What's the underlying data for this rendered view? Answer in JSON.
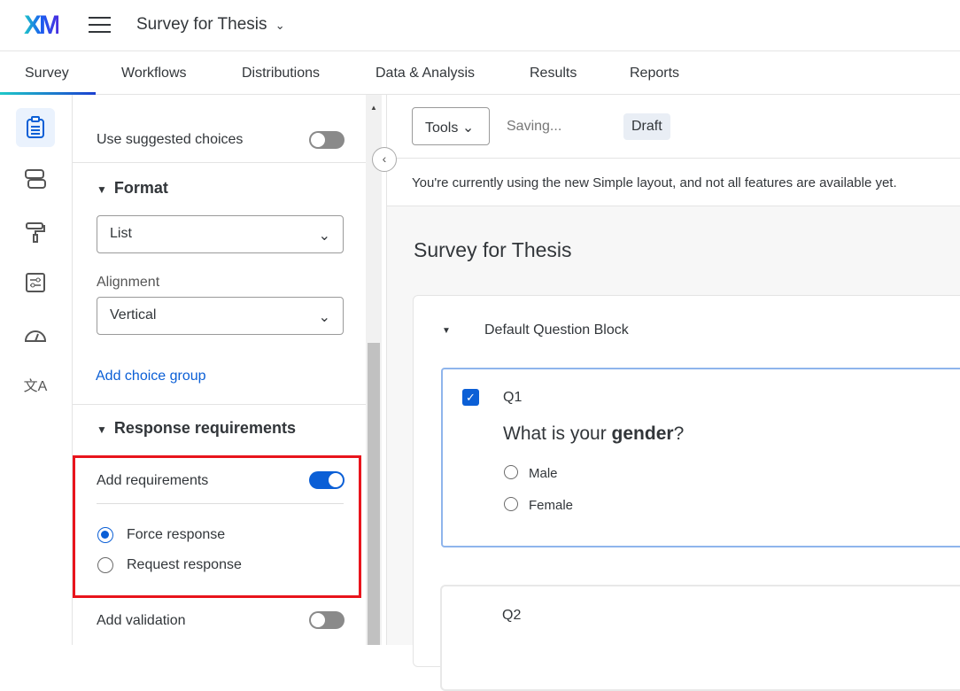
{
  "header": {
    "logo": "XM",
    "survey_title": "Survey for Thesis"
  },
  "tabs": [
    {
      "label": "Survey",
      "active": true
    },
    {
      "label": "Workflows"
    },
    {
      "label": "Distributions"
    },
    {
      "label": "Data & Analysis"
    },
    {
      "label": "Results"
    },
    {
      "label": "Reports"
    }
  ],
  "rail": [
    "survey-icon",
    "blocks-icon",
    "look-and-feel-icon",
    "survey-options-icon",
    "survey-checker-icon",
    "translate-icon"
  ],
  "panel": {
    "suggested_label": "Use suggested choices",
    "suggested_on": false,
    "format_heading": "Format",
    "format_value": "List",
    "alignment_label": "Alignment",
    "alignment_value": "Vertical",
    "add_choice_group": "Add choice group",
    "response_heading": "Response requirements",
    "add_requirements": "Add requirements",
    "add_requirements_on": true,
    "force_response": "Force response",
    "request_response": "Request response",
    "selected": "Force response",
    "add_validation": "Add validation",
    "add_validation_on": false
  },
  "toolbar": {
    "tools": "Tools",
    "status": "Saving...",
    "badge": "Draft"
  },
  "notice": "You're currently using the new Simple layout, and not all features are available yet.",
  "survey": {
    "title": "Survey for Thesis",
    "block": "Default Question Block",
    "q1": {
      "id": "Q1",
      "text_pre": "What is your ",
      "text_bold": "gender",
      "text_post": "?",
      "choices": [
        "Male",
        "Female"
      ]
    },
    "q2": {
      "id": "Q2"
    }
  },
  "colors": {
    "accent": "#0b5fd6",
    "highlight": "#e8141c"
  }
}
